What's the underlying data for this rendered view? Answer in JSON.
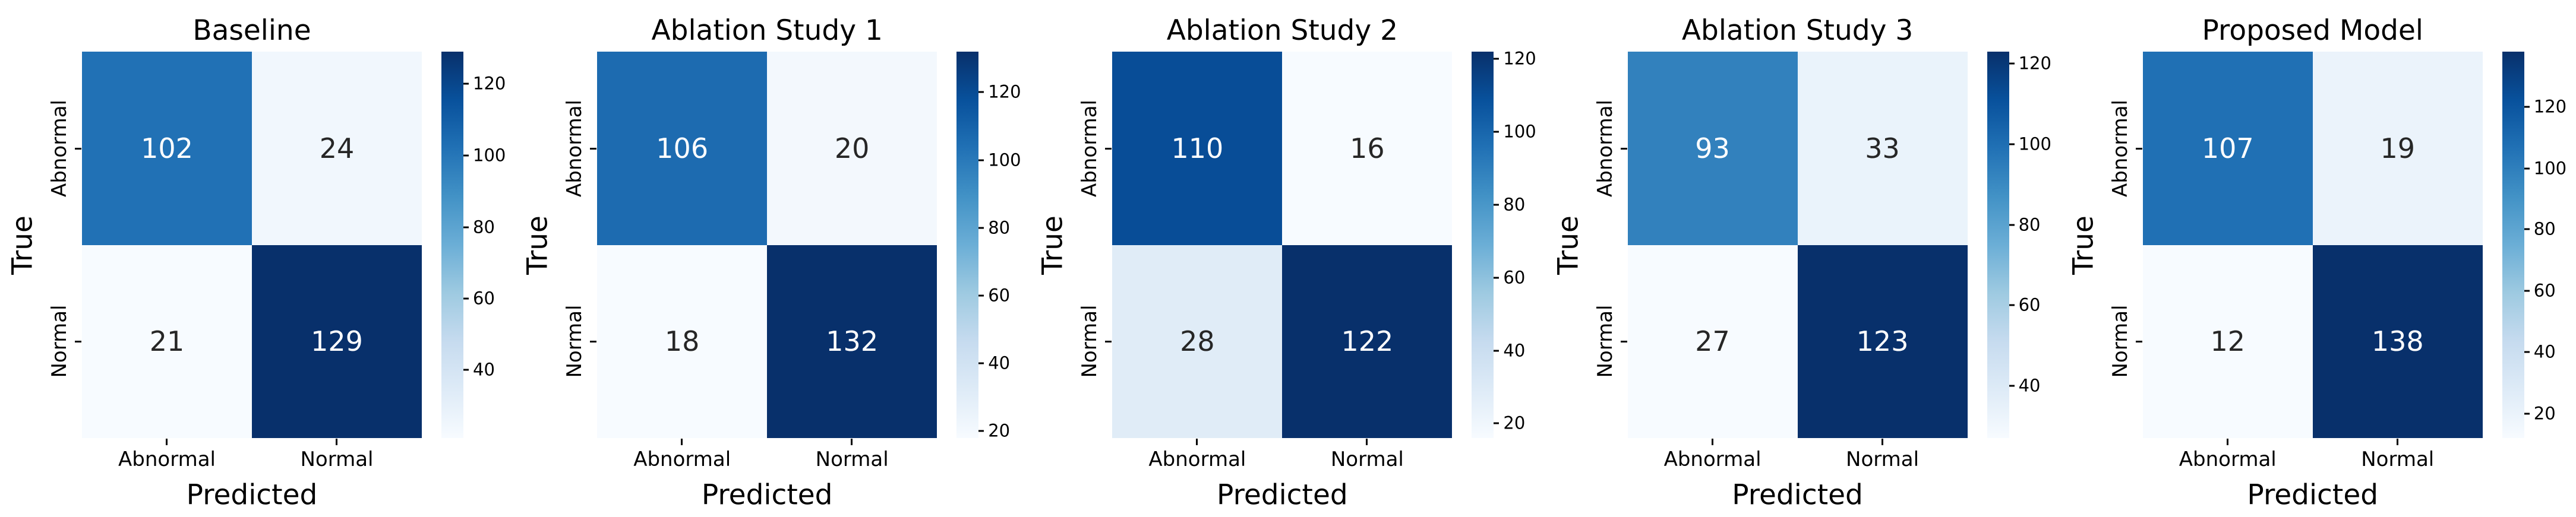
{
  "chart_data": {
    "type": "heatmap",
    "subtype": "confusion-matrix-grid",
    "colormap": "Blues",
    "grid": false,
    "legend": "per-panel vertical colorbar on right",
    "axes": {
      "xlabel": "Predicted",
      "ylabel": "True",
      "x_tick_labels": [
        "Abnormal",
        "Normal"
      ],
      "y_tick_labels": [
        "Abnormal",
        "Normal"
      ]
    },
    "colormap_stops": [
      "#f7fbff",
      "#deebf7",
      "#c6dbef",
      "#9ecae1",
      "#6baed6",
      "#4292c6",
      "#2171b5",
      "#08519c",
      "#08306b"
    ],
    "panels": [
      {
        "title": "Baseline",
        "matrix": [
          [
            102,
            24
          ],
          [
            21,
            129
          ]
        ],
        "vmin": 21,
        "vmax": 129,
        "cells": [
          {
            "value": "102",
            "bg": "#2171b5",
            "fg": "#ffffff"
          },
          {
            "value": "24",
            "bg": "#f1f7fd",
            "fg": "#262626"
          },
          {
            "value": "21",
            "bg": "#f7fbff",
            "fg": "#262626"
          },
          {
            "value": "129",
            "bg": "#08306b",
            "fg": "#ffffff"
          }
        ],
        "colorbar": {
          "ticks": [
            {
              "label": "40",
              "pos": 17.6
            },
            {
              "label": "60",
              "pos": 36.1
            },
            {
              "label": "80",
              "pos": 54.6
            },
            {
              "label": "100",
              "pos": 73.1
            },
            {
              "label": "120",
              "pos": 91.7
            }
          ]
        }
      },
      {
        "title": "Ablation Study 1",
        "matrix": [
          [
            106,
            20
          ],
          [
            18,
            132
          ]
        ],
        "vmin": 18,
        "vmax": 132,
        "cells": [
          {
            "value": "106",
            "bg": "#1d6bb0",
            "fg": "#ffffff"
          },
          {
            "value": "20",
            "bg": "#f3f8fd",
            "fg": "#262626"
          },
          {
            "value": "18",
            "bg": "#f7fbff",
            "fg": "#262626"
          },
          {
            "value": "132",
            "bg": "#08306b",
            "fg": "#ffffff"
          }
        ],
        "colorbar": {
          "ticks": [
            {
              "label": "20",
              "pos": 1.8
            },
            {
              "label": "40",
              "pos": 19.3
            },
            {
              "label": "60",
              "pos": 36.8
            },
            {
              "label": "80",
              "pos": 54.4
            },
            {
              "label": "100",
              "pos": 71.9
            },
            {
              "label": "120",
              "pos": 89.5
            }
          ]
        }
      },
      {
        "title": "Ablation Study 2",
        "matrix": [
          [
            110,
            16
          ],
          [
            28,
            122
          ]
        ],
        "vmin": 16,
        "vmax": 122,
        "cells": [
          {
            "value": "110",
            "bg": "#084d97",
            "fg": "#ffffff"
          },
          {
            "value": "16",
            "bg": "#f7fbff",
            "fg": "#262626"
          },
          {
            "value": "28",
            "bg": "#e0ecf7",
            "fg": "#262626"
          },
          {
            "value": "122",
            "bg": "#08306b",
            "fg": "#ffffff"
          }
        ],
        "colorbar": {
          "ticks": [
            {
              "label": "20",
              "pos": 3.8
            },
            {
              "label": "40",
              "pos": 22.6
            },
            {
              "label": "60",
              "pos": 41.5
            },
            {
              "label": "80",
              "pos": 60.4
            },
            {
              "label": "100",
              "pos": 79.2
            },
            {
              "label": "120",
              "pos": 98.1
            }
          ]
        }
      },
      {
        "title": "Ablation Study 3",
        "matrix": [
          [
            93,
            33
          ],
          [
            27,
            123
          ]
        ],
        "vmin": 27,
        "vmax": 123,
        "cells": [
          {
            "value": "93",
            "bg": "#3281bd",
            "fg": "#ffffff"
          },
          {
            "value": "33",
            "bg": "#eaf3fb",
            "fg": "#262626"
          },
          {
            "value": "27",
            "bg": "#f7fbff",
            "fg": "#262626"
          },
          {
            "value": "123",
            "bg": "#08306b",
            "fg": "#ffffff"
          }
        ],
        "colorbar": {
          "ticks": [
            {
              "label": "40",
              "pos": 13.5
            },
            {
              "label": "60",
              "pos": 34.4
            },
            {
              "label": "80",
              "pos": 55.2
            },
            {
              "label": "100",
              "pos": 76.0
            },
            {
              "label": "120",
              "pos": 96.9
            }
          ]
        }
      },
      {
        "title": "Proposed Model",
        "matrix": [
          [
            107,
            19
          ],
          [
            12,
            138
          ]
        ],
        "vmin": 12,
        "vmax": 138,
        "cells": [
          {
            "value": "107",
            "bg": "#2070b4",
            "fg": "#ffffff"
          },
          {
            "value": "19",
            "bg": "#ebf3fb",
            "fg": "#262626"
          },
          {
            "value": "12",
            "bg": "#f7fbff",
            "fg": "#262626"
          },
          {
            "value": "138",
            "bg": "#08306b",
            "fg": "#ffffff"
          }
        ],
        "colorbar": {
          "ticks": [
            {
              "label": "20",
              "pos": 6.3
            },
            {
              "label": "40",
              "pos": 22.2
            },
            {
              "label": "60",
              "pos": 38.1
            },
            {
              "label": "80",
              "pos": 54.0
            },
            {
              "label": "100",
              "pos": 69.8
            },
            {
              "label": "120",
              "pos": 85.7
            }
          ]
        }
      }
    ]
  }
}
